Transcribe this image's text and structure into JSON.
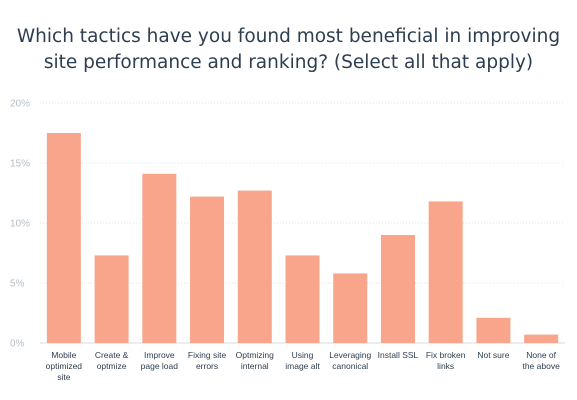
{
  "chart_data": {
    "type": "bar",
    "title_lines": [
      "Which tactics have you found most beneficial in improving",
      "site performance and ranking? (Select all that apply)"
    ],
    "categories": [
      [
        "Mobile",
        "optimized",
        "site"
      ],
      [
        "Create &",
        "optmize"
      ],
      [
        "Improve",
        "page load"
      ],
      [
        "Fixing site",
        "errors"
      ],
      [
        "Optmizing",
        "internal"
      ],
      [
        "Using",
        "image alt"
      ],
      [
        "Leveraging",
        "canonical"
      ],
      [
        "Install SSL"
      ],
      [
        "Fix broken",
        "links"
      ],
      [
        "Not sure"
      ],
      [
        "None of",
        "the above"
      ]
    ],
    "values": [
      17.5,
      7.3,
      14.1,
      12.2,
      12.7,
      7.3,
      5.8,
      9.0,
      11.8,
      2.1,
      0.7
    ],
    "ylim": [
      0,
      20
    ],
    "yticks": [
      0,
      5,
      10,
      15,
      20
    ],
    "ytick_labels": [
      "0%",
      "5%",
      "10%",
      "15%",
      "20%"
    ],
    "grid": true,
    "bar_color": "#f9a58c",
    "grid_color": "#dde3ea",
    "axis_color": "#d5dde6"
  }
}
